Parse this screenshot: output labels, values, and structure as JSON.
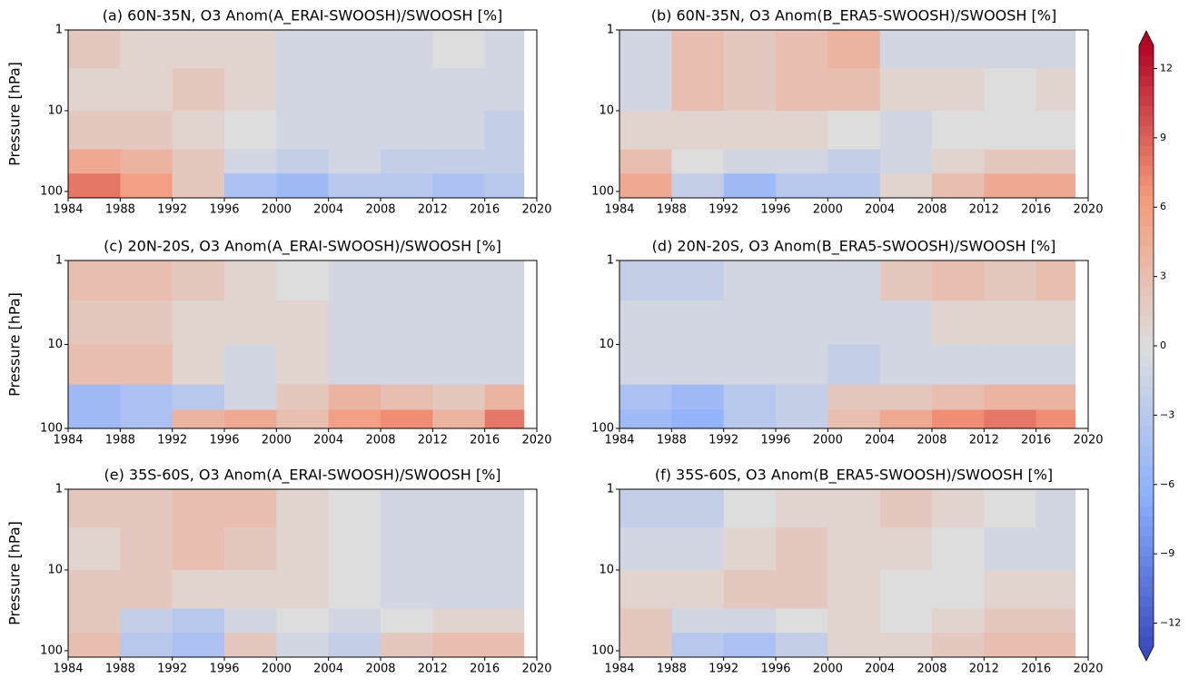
{
  "chart_data": [
    {
      "type": "heatmap",
      "title": "(a) 60N-35N, O3 Anom(A_ERAI-SWOOSH)/SWOOSH [%]",
      "ylabel": "Pressure [hPa]",
      "x": [
        1984,
        1988,
        1992,
        1996,
        2000,
        2004,
        2008,
        2012,
        2016,
        2019
      ],
      "y": [
        1,
        3,
        10,
        30,
        60,
        120
      ],
      "z": [
        [
          2,
          1,
          1,
          1,
          -1,
          -1,
          -1,
          0,
          -1
        ],
        [
          1,
          1,
          2,
          1,
          -1,
          -1,
          -1,
          -1,
          -1
        ],
        [
          2,
          2,
          1,
          0,
          -1,
          -1,
          -1,
          -1,
          -2
        ],
        [
          5,
          4,
          2,
          -1,
          -2,
          -1,
          -2,
          -2,
          -2
        ],
        [
          8,
          6,
          2,
          -4,
          -5,
          -3,
          -3,
          -4,
          -3
        ]
      ],
      "xlim": [
        1984,
        2020
      ],
      "xticks": [
        1984,
        1988,
        1992,
        1996,
        2000,
        2004,
        2008,
        2012,
        2016,
        2020
      ],
      "ylim": [
        120,
        1
      ],
      "yticks": [
        1,
        10,
        100
      ],
      "ylog": true
    },
    {
      "type": "heatmap",
      "title": "(b) 60N-35N, O3 Anom(B_ERA5-SWOOSH)/SWOOSH [%]",
      "x": [
        1984,
        1988,
        1992,
        1996,
        2000,
        2004,
        2008,
        2012,
        2016,
        2019
      ],
      "y": [
        1,
        3,
        10,
        30,
        60,
        120
      ],
      "z": [
        [
          -1,
          3,
          2,
          3,
          4,
          -1,
          -1,
          -1,
          -1
        ],
        [
          -1,
          3,
          2,
          3,
          3,
          1,
          1,
          0,
          1
        ],
        [
          1,
          1,
          1,
          1,
          0,
          -1,
          0,
          0,
          0
        ],
        [
          3,
          0,
          -1,
          -1,
          -2,
          -1,
          1,
          2,
          2
        ],
        [
          5,
          -2,
          -5,
          -3,
          -3,
          1,
          3,
          5,
          5
        ]
      ],
      "xlim": [
        1984,
        2020
      ],
      "xticks": [
        1984,
        1988,
        1992,
        1996,
        2000,
        2004,
        2008,
        2012,
        2016,
        2020
      ],
      "ylim": [
        120,
        1
      ],
      "yticks": [
        1,
        10,
        100
      ],
      "ylog": true
    },
    {
      "type": "heatmap",
      "title": "(c) 20N-20S, O3 Anom(A_ERAI-SWOOSH)/SWOOSH [%]",
      "ylabel": "Pressure [hPa]",
      "x": [
        1984,
        1988,
        1992,
        1996,
        2000,
        2004,
        2008,
        2012,
        2016,
        2019
      ],
      "y": [
        1,
        3,
        10,
        30,
        60,
        100
      ],
      "z": [
        [
          3,
          3,
          2,
          1,
          0,
          -1,
          -1,
          -1,
          -1
        ],
        [
          2,
          2,
          1,
          1,
          1,
          -1,
          -1,
          -1,
          -1
        ],
        [
          3,
          3,
          1,
          -1,
          1,
          -1,
          -1,
          -1,
          -1
        ],
        [
          -5,
          -4,
          -3,
          -1,
          2,
          4,
          3,
          2,
          4
        ],
        [
          -5,
          -4,
          4,
          5,
          3,
          6,
          7,
          4,
          8
        ]
      ],
      "xlim": [
        1984,
        2020
      ],
      "xticks": [
        1984,
        1988,
        1992,
        1996,
        2000,
        2004,
        2008,
        2012,
        2016,
        2020
      ],
      "ylim": [
        100,
        1
      ],
      "yticks": [
        1,
        10,
        100
      ],
      "ylog": true
    },
    {
      "type": "heatmap",
      "title": "(d) 20N-20S, O3 Anom(B_ERA5-SWOOSH)/SWOOSH [%]",
      "x": [
        1984,
        1988,
        1992,
        1996,
        2000,
        2004,
        2008,
        2012,
        2016,
        2019
      ],
      "y": [
        1,
        3,
        10,
        30,
        60,
        100
      ],
      "z": [
        [
          -2,
          -2,
          -1,
          -1,
          -1,
          2,
          3,
          2,
          3
        ],
        [
          -1,
          -1,
          -1,
          -1,
          -1,
          -1,
          1,
          1,
          1
        ],
        [
          -1,
          -1,
          -1,
          -1,
          -2,
          -1,
          -1,
          -1,
          -1
        ],
        [
          -4,
          -5,
          -3,
          -2,
          2,
          2,
          3,
          4,
          4
        ],
        [
          -5,
          -6,
          -3,
          -2,
          3,
          5,
          7,
          8,
          7
        ]
      ],
      "xlim": [
        1984,
        2020
      ],
      "xticks": [
        1984,
        1988,
        1992,
        1996,
        2000,
        2004,
        2008,
        2012,
        2016,
        2020
      ],
      "ylim": [
        100,
        1
      ],
      "yticks": [
        1,
        10,
        100
      ],
      "ylog": true
    },
    {
      "type": "heatmap",
      "title": "(e) 35S-60S, O3 Anom(A_ERAI-SWOOSH)/SWOOSH [%]",
      "ylabel": "Pressure [hPa]",
      "x": [
        1984,
        1988,
        1992,
        1996,
        2000,
        2004,
        2008,
        2012,
        2016,
        2019
      ],
      "y": [
        1,
        3,
        10,
        30,
        60,
        120
      ],
      "z": [
        [
          2,
          2,
          3,
          3,
          1,
          0,
          -1,
          -1,
          -1
        ],
        [
          1,
          2,
          3,
          2,
          1,
          0,
          -1,
          -1,
          -1
        ],
        [
          2,
          2,
          1,
          1,
          1,
          0,
          -1,
          -1,
          -1
        ],
        [
          2,
          -2,
          -3,
          -1,
          0,
          -1,
          0,
          1,
          1
        ],
        [
          3,
          -3,
          -4,
          2,
          -1,
          -2,
          2,
          3,
          3
        ]
      ],
      "xlim": [
        1984,
        2020
      ],
      "xticks": [
        1984,
        1988,
        1992,
        1996,
        2000,
        2004,
        2008,
        2012,
        2016,
        2020
      ],
      "ylim": [
        120,
        1
      ],
      "yticks": [
        1,
        10,
        100
      ],
      "ylog": true
    },
    {
      "type": "heatmap",
      "title": "(f) 35S-60S, O3 Anom(B_ERA5-SWOOSH)/SWOOSH [%]",
      "x": [
        1984,
        1988,
        1992,
        1996,
        2000,
        2004,
        2008,
        2012,
        2016,
        2019
      ],
      "y": [
        1,
        3,
        10,
        30,
        60,
        120
      ],
      "z": [
        [
          -2,
          -2,
          0,
          1,
          1,
          2,
          1,
          0,
          -1
        ],
        [
          -1,
          -1,
          1,
          2,
          1,
          1,
          0,
          -1,
          -1
        ],
        [
          1,
          1,
          2,
          2,
          1,
          0,
          0,
          1,
          1
        ],
        [
          2,
          -1,
          -1,
          0,
          1,
          0,
          1,
          2,
          2
        ],
        [
          2,
          -3,
          -4,
          -2,
          1,
          1,
          2,
          3,
          3
        ]
      ],
      "xlim": [
        1984,
        2020
      ],
      "xticks": [
        1984,
        1988,
        1992,
        1996,
        2000,
        2004,
        2008,
        2012,
        2016,
        2020
      ],
      "ylim": [
        120,
        1
      ],
      "yticks": [
        1,
        10,
        100
      ],
      "ylog": true
    },
    {
      "type": "colorbar",
      "colormap": "coolwarm",
      "zlim": [
        -13,
        13
      ],
      "zticks": [
        12,
        9,
        6,
        3,
        0,
        {
          "value": -3,
          "label": "−3"
        },
        {
          "value": -6,
          "label": "−6"
        },
        {
          "value": -9,
          "label": "−9"
        },
        {
          "value": -12,
          "label": "−12"
        }
      ]
    }
  ]
}
